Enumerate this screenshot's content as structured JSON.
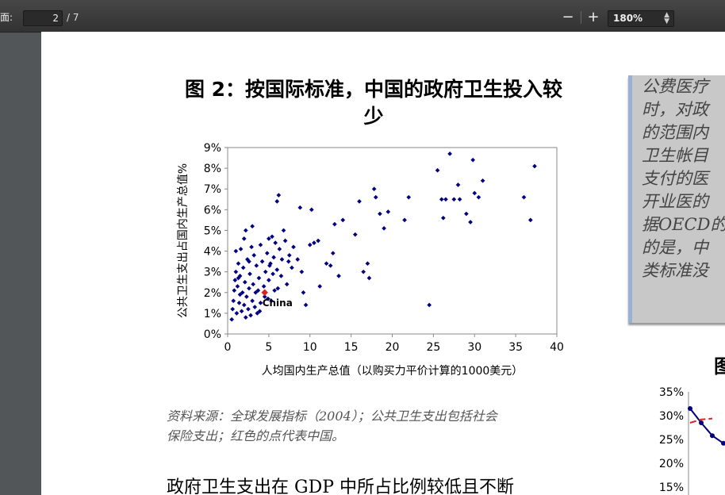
{
  "toolbar": {
    "page_label": "页面:",
    "page_label_visible": "面:",
    "page_value": "2",
    "page_total": "/ 7",
    "zoom_out": "−",
    "zoom_in": "+",
    "zoom_value": "180%"
  },
  "figure": {
    "title_line1": "图 2：按国际标准，中国的政府卫生投入较",
    "title_line2": "少"
  },
  "chart_data": {
    "type": "scatter",
    "title": "图 2：按国际标准，中国的政府卫生投入较少",
    "xlabel": "人均国内生产总值（以购买力平价计算的1000美元）",
    "ylabel": "公共卫生支出占国内生产总值%",
    "xlim": [
      0,
      40
    ],
    "ylim": [
      0,
      9
    ],
    "x_ticks": [
      "0",
      "5",
      "10",
      "15",
      "20",
      "25",
      "30",
      "35",
      "40"
    ],
    "y_ticks": [
      "0%",
      "1%",
      "2%",
      "3%",
      "4%",
      "5%",
      "6%",
      "7%",
      "8%",
      "9%"
    ],
    "grid": false,
    "highlight": {
      "label": "China",
      "x": 4.5,
      "y": 2.0,
      "color": "#e02020"
    },
    "series_color": "#000080",
    "points": [
      [
        0.5,
        0.7
      ],
      [
        0.6,
        1.2
      ],
      [
        0.7,
        1.6
      ],
      [
        0.8,
        2.1
      ],
      [
        0.9,
        2.6
      ],
      [
        1.0,
        3.0
      ],
      [
        1.0,
        4.0
      ],
      [
        1.1,
        1.0
      ],
      [
        1.2,
        2.3
      ],
      [
        1.3,
        3.4
      ],
      [
        1.4,
        1.5
      ],
      [
        1.5,
        1.9
      ],
      [
        1.5,
        2.8
      ],
      [
        1.6,
        4.1
      ],
      [
        1.7,
        1.1
      ],
      [
        1.8,
        2.0
      ],
      [
        1.9,
        3.2
      ],
      [
        2.0,
        1.4
      ],
      [
        2.0,
        4.6
      ],
      [
        2.1,
        2.5
      ],
      [
        2.2,
        0.8
      ],
      [
        2.2,
        5.0
      ],
      [
        2.3,
        1.8
      ],
      [
        2.4,
        3.6
      ],
      [
        2.5,
        1.2
      ],
      [
        2.6,
        2.2
      ],
      [
        2.7,
        2.9
      ],
      [
        2.8,
        0.9
      ],
      [
        2.9,
        4.2
      ],
      [
        3.0,
        1.6
      ],
      [
        3.0,
        5.2
      ],
      [
        3.1,
        2.4
      ],
      [
        3.2,
        3.8
      ],
      [
        3.3,
        1.3
      ],
      [
        3.4,
        2.0
      ],
      [
        3.5,
        3.3
      ],
      [
        3.6,
        1.0
      ],
      [
        3.8,
        2.7
      ],
      [
        4.0,
        1.5
      ],
      [
        4.0,
        4.3
      ],
      [
        4.2,
        3.5
      ],
      [
        4.4,
        2.3
      ],
      [
        4.5,
        1.8
      ],
      [
        4.6,
        3.0
      ],
      [
        4.8,
        3.9
      ],
      [
        5.0,
        2.6
      ],
      [
        5.0,
        4.6
      ],
      [
        5.2,
        3.4
      ],
      [
        5.3,
        1.6
      ],
      [
        5.4,
        4.7
      ],
      [
        5.5,
        2.9
      ],
      [
        5.6,
        3.7
      ],
      [
        5.7,
        2.1
      ],
      [
        5.8,
        4.4
      ],
      [
        6.0,
        3.1
      ],
      [
        6.0,
        6.4
      ],
      [
        6.2,
        6.7
      ],
      [
        6.3,
        4.1
      ],
      [
        6.5,
        2.8
      ],
      [
        6.6,
        3.6
      ],
      [
        6.8,
        5.0
      ],
      [
        7.0,
        4.5
      ],
      [
        7.2,
        2.4
      ],
      [
        7.5,
        3.8
      ],
      [
        7.8,
        3.2
      ],
      [
        8.0,
        4.2
      ],
      [
        8.5,
        3.6
      ],
      [
        8.8,
        6.1
      ],
      [
        9.0,
        3.0
      ],
      [
        9.2,
        2.0
      ],
      [
        9.5,
        1.4
      ],
      [
        10.0,
        4.3
      ],
      [
        10.2,
        6.0
      ],
      [
        10.5,
        4.4
      ],
      [
        11.0,
        4.5
      ],
      [
        11.2,
        2.3
      ],
      [
        12.0,
        3.4
      ],
      [
        12.5,
        3.3
      ],
      [
        12.8,
        3.9
      ],
      [
        13.0,
        5.3
      ],
      [
        13.5,
        2.8
      ],
      [
        14.0,
        5.5
      ],
      [
        15.5,
        4.8
      ],
      [
        16.0,
        6.4
      ],
      [
        16.5,
        3.0
      ],
      [
        17.0,
        3.4
      ],
      [
        17.2,
        2.7
      ],
      [
        17.8,
        7.0
      ],
      [
        18.0,
        6.6
      ],
      [
        18.5,
        5.8
      ],
      [
        19.0,
        5.1
      ],
      [
        19.5,
        5.9
      ],
      [
        21.5,
        5.5
      ],
      [
        22.0,
        6.6
      ],
      [
        24.5,
        1.4
      ],
      [
        25.5,
        7.9
      ],
      [
        26.0,
        6.5
      ],
      [
        26.2,
        5.6
      ],
      [
        26.5,
        6.5
      ],
      [
        27.0,
        8.7
      ],
      [
        27.5,
        6.5
      ],
      [
        28.0,
        7.2
      ],
      [
        28.2,
        6.5
      ],
      [
        29.0,
        5.8
      ],
      [
        29.5,
        5.4
      ],
      [
        29.8,
        8.4
      ],
      [
        30.0,
        6.8
      ],
      [
        30.5,
        6.6
      ],
      [
        31.0,
        7.4
      ],
      [
        36.0,
        6.6
      ],
      [
        36.8,
        5.5
      ],
      [
        37.3,
        8.1
      ],
      [
        3.7,
        2.1
      ],
      [
        4.9,
        1.7
      ],
      [
        2.6,
        3.5
      ],
      [
        1.3,
        2.7
      ],
      [
        3.9,
        1.1
      ],
      [
        5.1,
        3.3
      ],
      [
        6.1,
        2.2
      ],
      [
        7.4,
        3.5
      ]
    ]
  },
  "source": {
    "line1": "资料来源：全球发展指标（2004）；公共卫生支出包括社会",
    "line2": "保险支出；红色的点代表中国。"
  },
  "body": {
    "line1": "政府卫生支出在 GDP 中所占比例较低且不断"
  },
  "sidebar_box": {
    "lines": [
      "公费医疗",
      "时，对政",
      "的范围内",
      "卫生帐目",
      "支付的医",
      "开业医的",
      "据OECD的",
      "的是，中",
      "类标准没"
    ]
  },
  "fig3": {
    "title": "图",
    "chart_data": {
      "type": "line",
      "y_ticks": [
        "35%",
        "30%",
        "25%",
        "20%",
        "15%"
      ],
      "ylim": [
        15,
        35
      ],
      "series": [
        {
          "values": [
            31.5,
            28.5,
            25.8,
            24.2
          ],
          "color": "#000080"
        },
        {
          "values": [
            28.5,
            29.2,
            29.4
          ],
          "color": "#e02020",
          "dashed": true
        }
      ]
    }
  }
}
